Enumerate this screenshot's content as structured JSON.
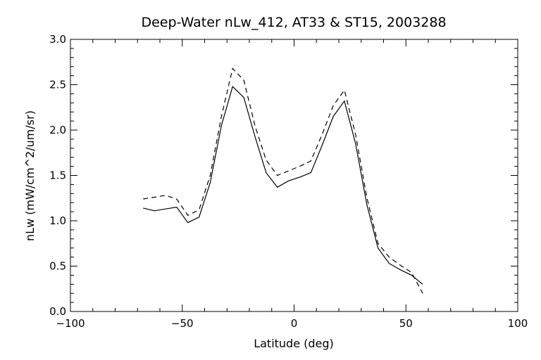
{
  "chart_data": {
    "type": "line",
    "title": "Deep-Water nLw_412, AT33 & ST15, 2003288",
    "xlabel": "Latitude (deg)",
    "ylabel": "nLw (mW/cm^2/um/sr)",
    "xlim": [
      -100,
      100
    ],
    "ylim": [
      0.0,
      3.0
    ],
    "xticks": [
      -100,
      -50,
      0,
      50,
      100
    ],
    "xtick_labels": [
      "−100",
      "−50",
      "0",
      "50",
      "100"
    ],
    "yticks": [
      0.0,
      0.5,
      1.0,
      1.5,
      2.0,
      2.5,
      3.0
    ],
    "ytick_labels": [
      "0.0",
      "0.5",
      "1.0",
      "1.5",
      "2.0",
      "2.5",
      "3.0"
    ],
    "grid": false,
    "series": [
      {
        "style": "solid",
        "color": "#000000",
        "x": [
          -67.5,
          -62.5,
          -57.5,
          -52.5,
          -47.5,
          -42.5,
          -37.5,
          -32.5,
          -27.5,
          -22.5,
          -17.5,
          -12.5,
          -7.5,
          -2.5,
          2.5,
          7.5,
          12.5,
          17.5,
          22.5,
          27.5,
          32.5,
          37.5,
          42.5,
          47.5,
          52.5,
          57.5
        ],
        "y": [
          1.14,
          1.11,
          1.13,
          1.15,
          0.98,
          1.04,
          1.42,
          2.05,
          2.48,
          2.36,
          1.93,
          1.53,
          1.37,
          1.44,
          1.48,
          1.53,
          1.83,
          2.15,
          2.32,
          1.85,
          1.18,
          0.7,
          0.53,
          0.46,
          0.4,
          0.3
        ]
      },
      {
        "style": "dashed",
        "color": "#000000",
        "x": [
          -67.5,
          -62.5,
          -57.5,
          -52.5,
          -47.5,
          -42.5,
          -37.5,
          -32.5,
          -27.5,
          -22.5,
          -17.5,
          -12.5,
          -7.5,
          -2.5,
          2.5,
          7.5,
          12.5,
          17.5,
          22.5,
          27.5,
          32.5,
          37.5,
          42.5,
          47.5,
          52.5,
          57.5
        ],
        "y": [
          1.24,
          1.26,
          1.28,
          1.24,
          1.06,
          1.12,
          1.5,
          2.15,
          2.68,
          2.55,
          2.05,
          1.67,
          1.5,
          1.55,
          1.6,
          1.66,
          1.95,
          2.27,
          2.44,
          1.95,
          1.26,
          0.75,
          0.6,
          0.51,
          0.43,
          0.2
        ]
      }
    ]
  }
}
